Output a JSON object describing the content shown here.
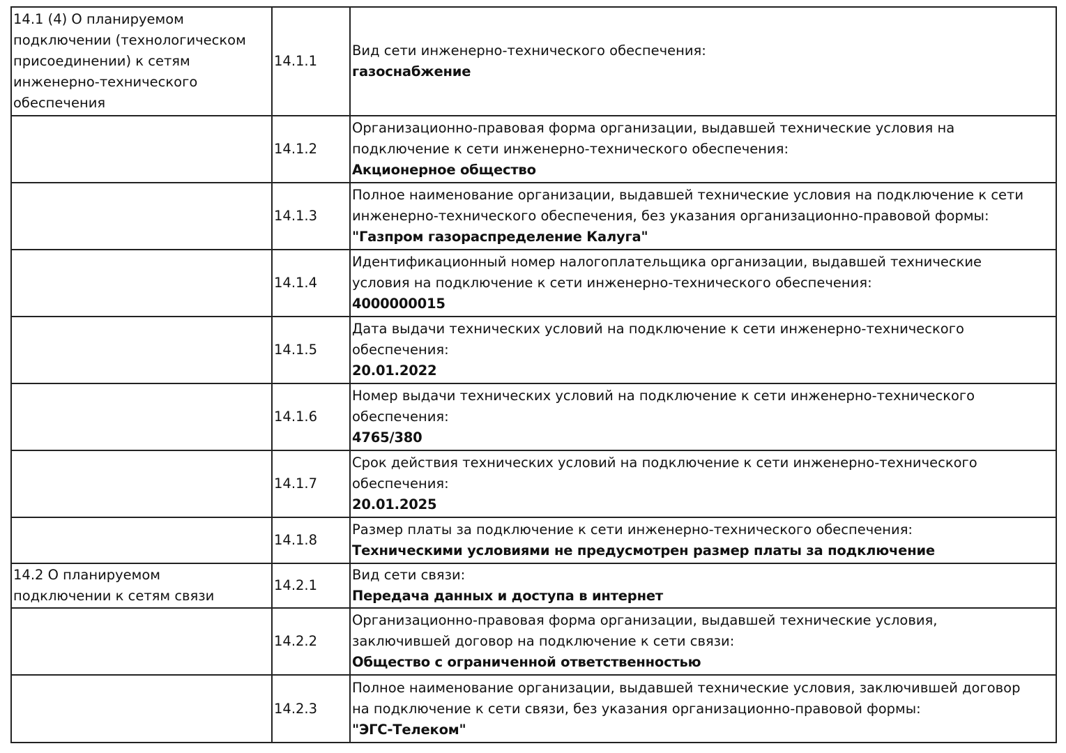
{
  "rows": [
    {
      "section": [
        "14.1 (4) О планируемом",
        "подключении (технологическом",
        "присоединении) к сетям",
        "инженерно-технического",
        "обеспечения"
      ],
      "num": "14.1.1",
      "label": [
        "Вид сети инженерно-технического обеспечения:"
      ],
      "value": "газоснабжение"
    },
    {
      "section": [],
      "num": "14.1.2",
      "label": [
        "Организационно-правовая форма организации, выдавшей технические условия на",
        "подключение к сети инженерно-технического обеспечения:"
      ],
      "value": "Акционерное общество"
    },
    {
      "section": [],
      "num": "14.1.3",
      "label": [
        "Полное наименование организации, выдавшей технические условия на подключение к сети",
        "инженерно-технического обеспечения, без указания организационно-правовой формы:"
      ],
      "value": "\"Газпром газораспределение Калуга\""
    },
    {
      "section": [],
      "num": "14.1.4",
      "label": [
        "Идентификационный номер налогоплательщика организации, выдавшей технические",
        "условия на подключение к сети инженерно-технического обеспечения:"
      ],
      "value": "4000000015"
    },
    {
      "section": [],
      "num": "14.1.5",
      "label": [
        "Дата выдачи технических условий на подключение к сети инженерно-технического",
        "обеспечения:"
      ],
      "value": "20.01.2022"
    },
    {
      "section": [],
      "num": "14.1.6",
      "label": [
        "Номер выдачи технических условий на подключение к сети инженерно-технического",
        "обеспечения:"
      ],
      "value": "4765/380"
    },
    {
      "section": [],
      "num": "14.1.7",
      "label": [
        "Срок действия технических условий на подключение к сети инженерно-технического",
        "обеспечения:"
      ],
      "value": "20.01.2025"
    },
    {
      "section": [],
      "num": "14.1.8",
      "label": [
        "Размер платы за подключение к сети инженерно-технического обеспечения:"
      ],
      "value": "Техническими условиями не предусмотрен размер платы за подключение"
    },
    {
      "section": [
        "14.2 О планируемом",
        "подключении к сетям связи"
      ],
      "num": "14.2.1",
      "label": [
        "Вид сети связи:"
      ],
      "value": "Передача данных и доступа в интернет"
    },
    {
      "section": [],
      "num": "14.2.2",
      "label": [
        "Организационно-правовая форма организации, выдавшей технические условия,",
        "заключившей договор на подключение к сети связи:"
      ],
      "value": "Общество с ограниченной ответственностью"
    },
    {
      "section": [],
      "num": "14.2.3",
      "label": [
        "Полное наименование организации, выдавшей технические условия, заключившей договор",
        "на подключение к сети связи, без указания организационно-правовой формы:"
      ],
      "value": "\"ЭГС-Телеком\""
    }
  ]
}
